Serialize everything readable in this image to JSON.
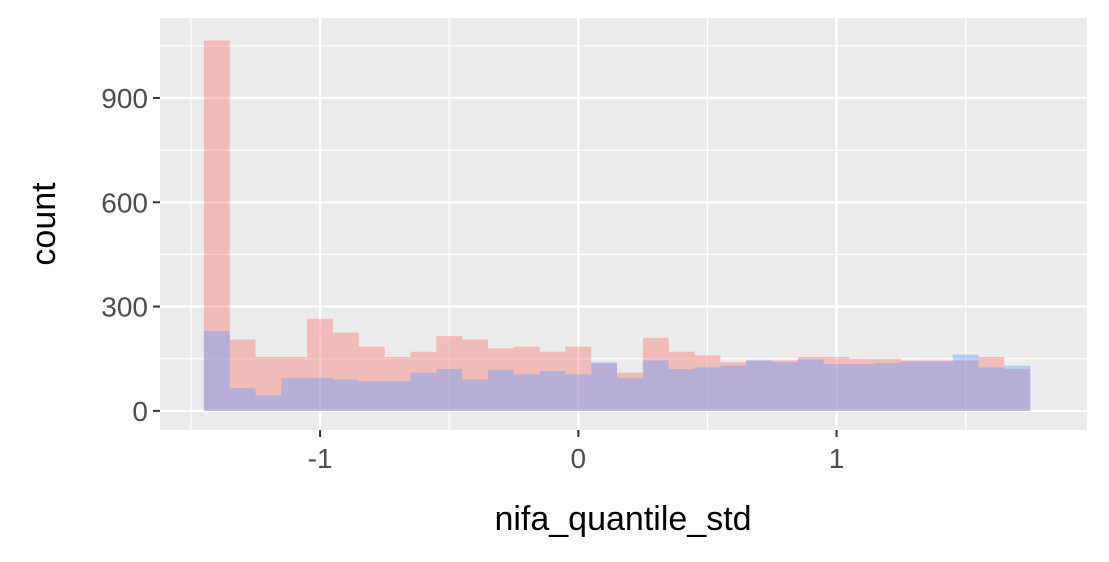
{
  "chart_data": {
    "type": "bar",
    "xlabel": "nifa_quantile_std",
    "ylabel": "count",
    "x_ticks": [
      -1,
      0,
      1
    ],
    "x_tick_labels": [
      "-1",
      "0",
      "1"
    ],
    "y_ticks": [
      0,
      300,
      600,
      900
    ],
    "y_tick_labels": [
      "0",
      "300",
      "600",
      "900"
    ],
    "xlim": [
      -1.62,
      1.97
    ],
    "ylim": [
      -55,
      1130
    ],
    "grid": true,
    "legend": "none",
    "bin_edges": [
      -1.45,
      -1.35,
      -1.25,
      -1.15,
      -1.05,
      -0.95,
      -0.85,
      -0.75,
      -0.65,
      -0.55,
      -0.45,
      -0.35,
      -0.25,
      -0.15,
      -0.05,
      0.05,
      0.15,
      0.25,
      0.35,
      0.45,
      0.55,
      0.65,
      0.75,
      0.85,
      0.95,
      1.05,
      1.15,
      1.25,
      1.35,
      1.45,
      1.55,
      1.65,
      1.75
    ],
    "series": [
      {
        "color": "#f8766d",
        "values": [
          1065,
          205,
          155,
          155,
          265,
          225,
          185,
          155,
          170,
          215,
          205,
          180,
          185,
          170,
          185,
          135,
          110,
          210,
          170,
          160,
          140,
          145,
          145,
          155,
          155,
          150,
          150,
          145,
          145,
          145,
          155,
          120
        ]
      },
      {
        "color": "#619cff",
        "values": [
          230,
          65,
          45,
          95,
          95,
          90,
          85,
          85,
          110,
          120,
          90,
          118,
          105,
          115,
          105,
          140,
          95,
          145,
          120,
          125,
          130,
          145,
          140,
          148,
          135,
          135,
          138,
          142,
          142,
          162,
          125,
          130
        ]
      }
    ]
  }
}
